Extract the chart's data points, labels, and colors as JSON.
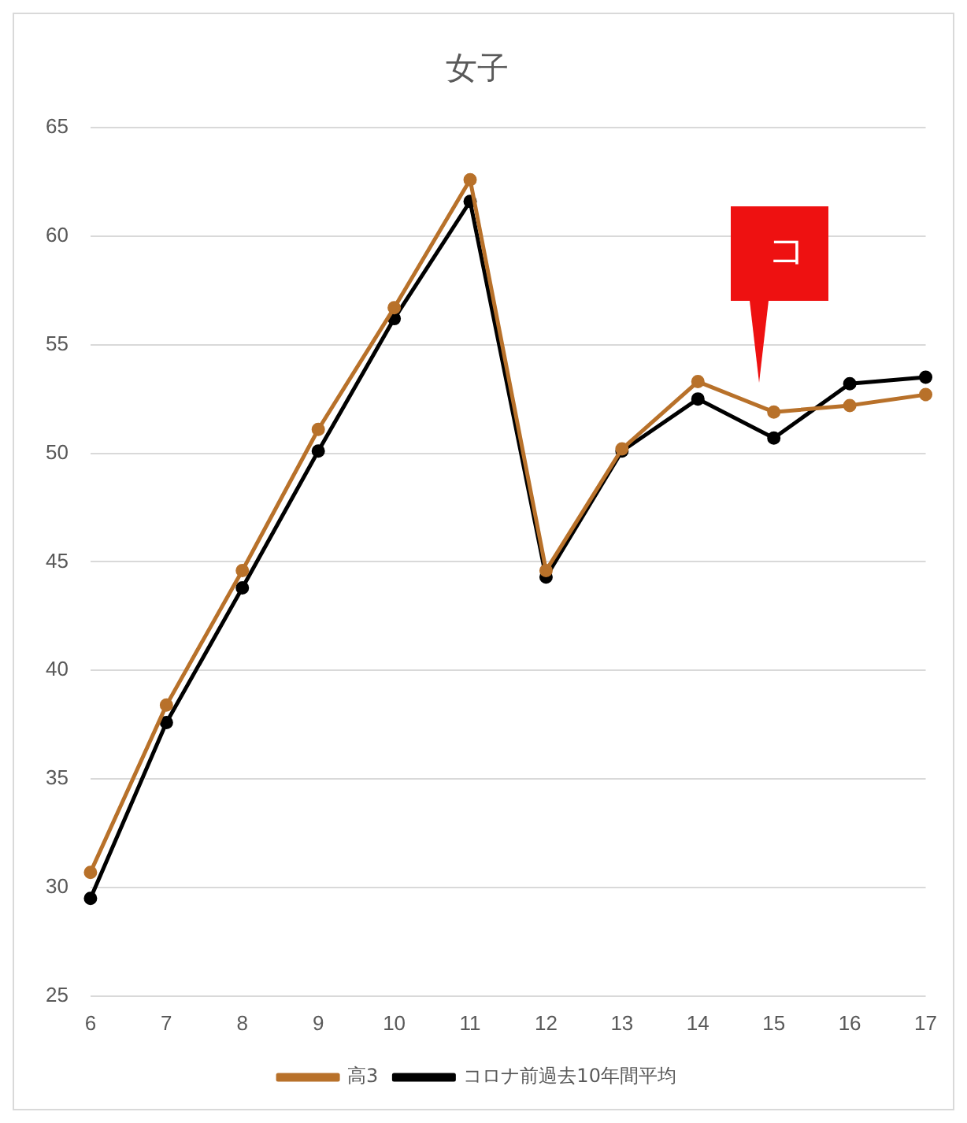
{
  "chart_data": {
    "type": "line",
    "title": "女子",
    "categories": [
      "6",
      "7",
      "8",
      "9",
      "10",
      "11",
      "12",
      "13",
      "14",
      "15",
      "16",
      "17"
    ],
    "series": [
      {
        "name": "コロナ前過去10年間平均",
        "color": "#000000",
        "values": [
          29.5,
          37.6,
          43.8,
          50.1,
          56.2,
          61.6,
          44.3,
          50.1,
          52.5,
          50.7,
          53.2,
          53.5
        ]
      },
      {
        "name": "高3",
        "color": "#b8712a",
        "values": [
          30.7,
          38.4,
          44.6,
          51.1,
          56.7,
          62.6,
          44.6,
          50.2,
          53.3,
          51.9,
          52.2,
          52.7
        ]
      }
    ],
    "ylim": [
      25,
      65
    ],
    "yticks": [
      25,
      30,
      35,
      40,
      45,
      50,
      55,
      60,
      65
    ],
    "grid": "y",
    "legend": "bottom",
    "marker": "circle",
    "line_style": "solid",
    "annotations": [
      "コ"
    ]
  }
}
